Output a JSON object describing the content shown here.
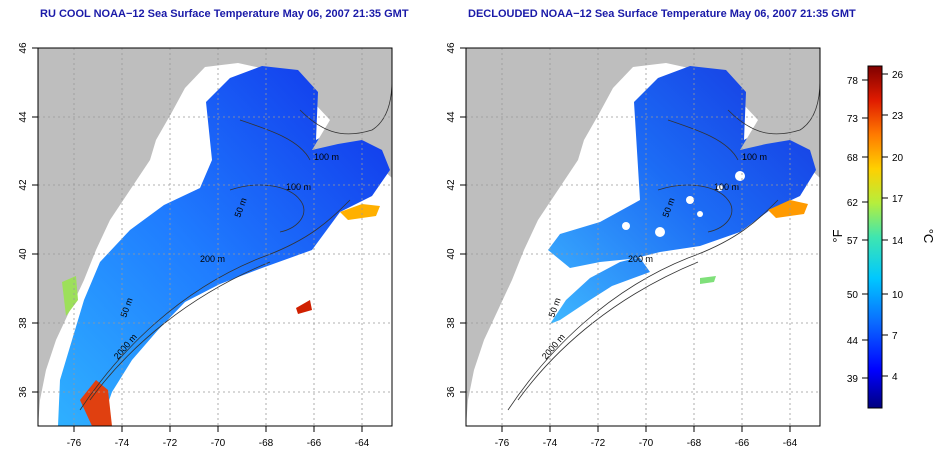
{
  "titles": {
    "left": "RU COOL NOAA−12 Sea Surface Temperature May 06, 2007 21:35 GMT",
    "right": "DECLOUDED NOAA−12 Sea Surface Temperature May 06, 2007 21:35 GMT"
  },
  "map": {
    "lon_range": [
      -77,
      -63
    ],
    "lat_range": [
      35,
      46
    ],
    "x_ticks": [
      "-76",
      "-74",
      "-72",
      "-70",
      "-68",
      "-66",
      "-64"
    ],
    "y_ticks": [
      "36",
      "38",
      "40",
      "42",
      "44",
      "46"
    ],
    "grid": "dotted",
    "colors": {
      "land": "#bebebe",
      "no_data": "#ffffff",
      "contour": "#333333",
      "frame": "#000000"
    }
  },
  "contour_labels": {
    "left": [
      "100 m",
      "100 m",
      "50 m",
      "200 m",
      "50 m",
      "2000 m"
    ],
    "right": [
      "100 m",
      "100 m",
      "50 m",
      "200 m",
      "50 m",
      "2000 m"
    ]
  },
  "colorbar": {
    "fahrenheit_ticks": [
      "78",
      "73",
      "68",
      "62",
      "57",
      "50",
      "44",
      "39"
    ],
    "celsius_ticks": [
      "26",
      "23",
      "20",
      "17",
      "14",
      "10",
      "7",
      "4"
    ],
    "fahrenheit_unit": "°F",
    "celsius_unit": "°C",
    "gradient": [
      "#00007f",
      "#0000ff",
      "#0a6bff",
      "#00c8ff",
      "#3fe6b0",
      "#b6ee3c",
      "#ffd000",
      "#ff7a00",
      "#e01b00",
      "#7f0000"
    ]
  }
}
